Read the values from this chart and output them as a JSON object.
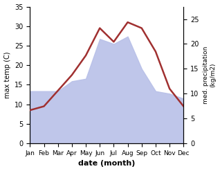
{
  "months": [
    "Jan",
    "Feb",
    "Mar",
    "Apr",
    "May",
    "Jun",
    "Jul",
    "Aug",
    "Sep",
    "Oct",
    "Nov",
    "Dec"
  ],
  "max_temp": [
    8.5,
    9.5,
    13.5,
    17.5,
    22.5,
    29.5,
    26.0,
    31.0,
    29.5,
    23.5,
    14.0,
    9.5
  ],
  "precipitation": [
    10.5,
    10.5,
    10.5,
    12.5,
    13.0,
    21.0,
    20.0,
    21.5,
    15.0,
    10.5,
    10.0,
    9.0
  ],
  "temp_ylim": [
    0,
    35
  ],
  "precip_ylim": [
    0,
    27.5
  ],
  "temp_color": "#a03030",
  "precip_fill_color": "#b8c0e8",
  "precip_fill_alpha": 0.9,
  "left_ylabel": "max temp (C)",
  "right_ylabel": "med. precipitation\n(kg/m2)",
  "xlabel": "date (month)",
  "temp_yticks": [
    0,
    5,
    10,
    15,
    20,
    25,
    30,
    35
  ],
  "precip_yticks": [
    0,
    5,
    10,
    15,
    20,
    25
  ],
  "background_color": "#ffffff"
}
